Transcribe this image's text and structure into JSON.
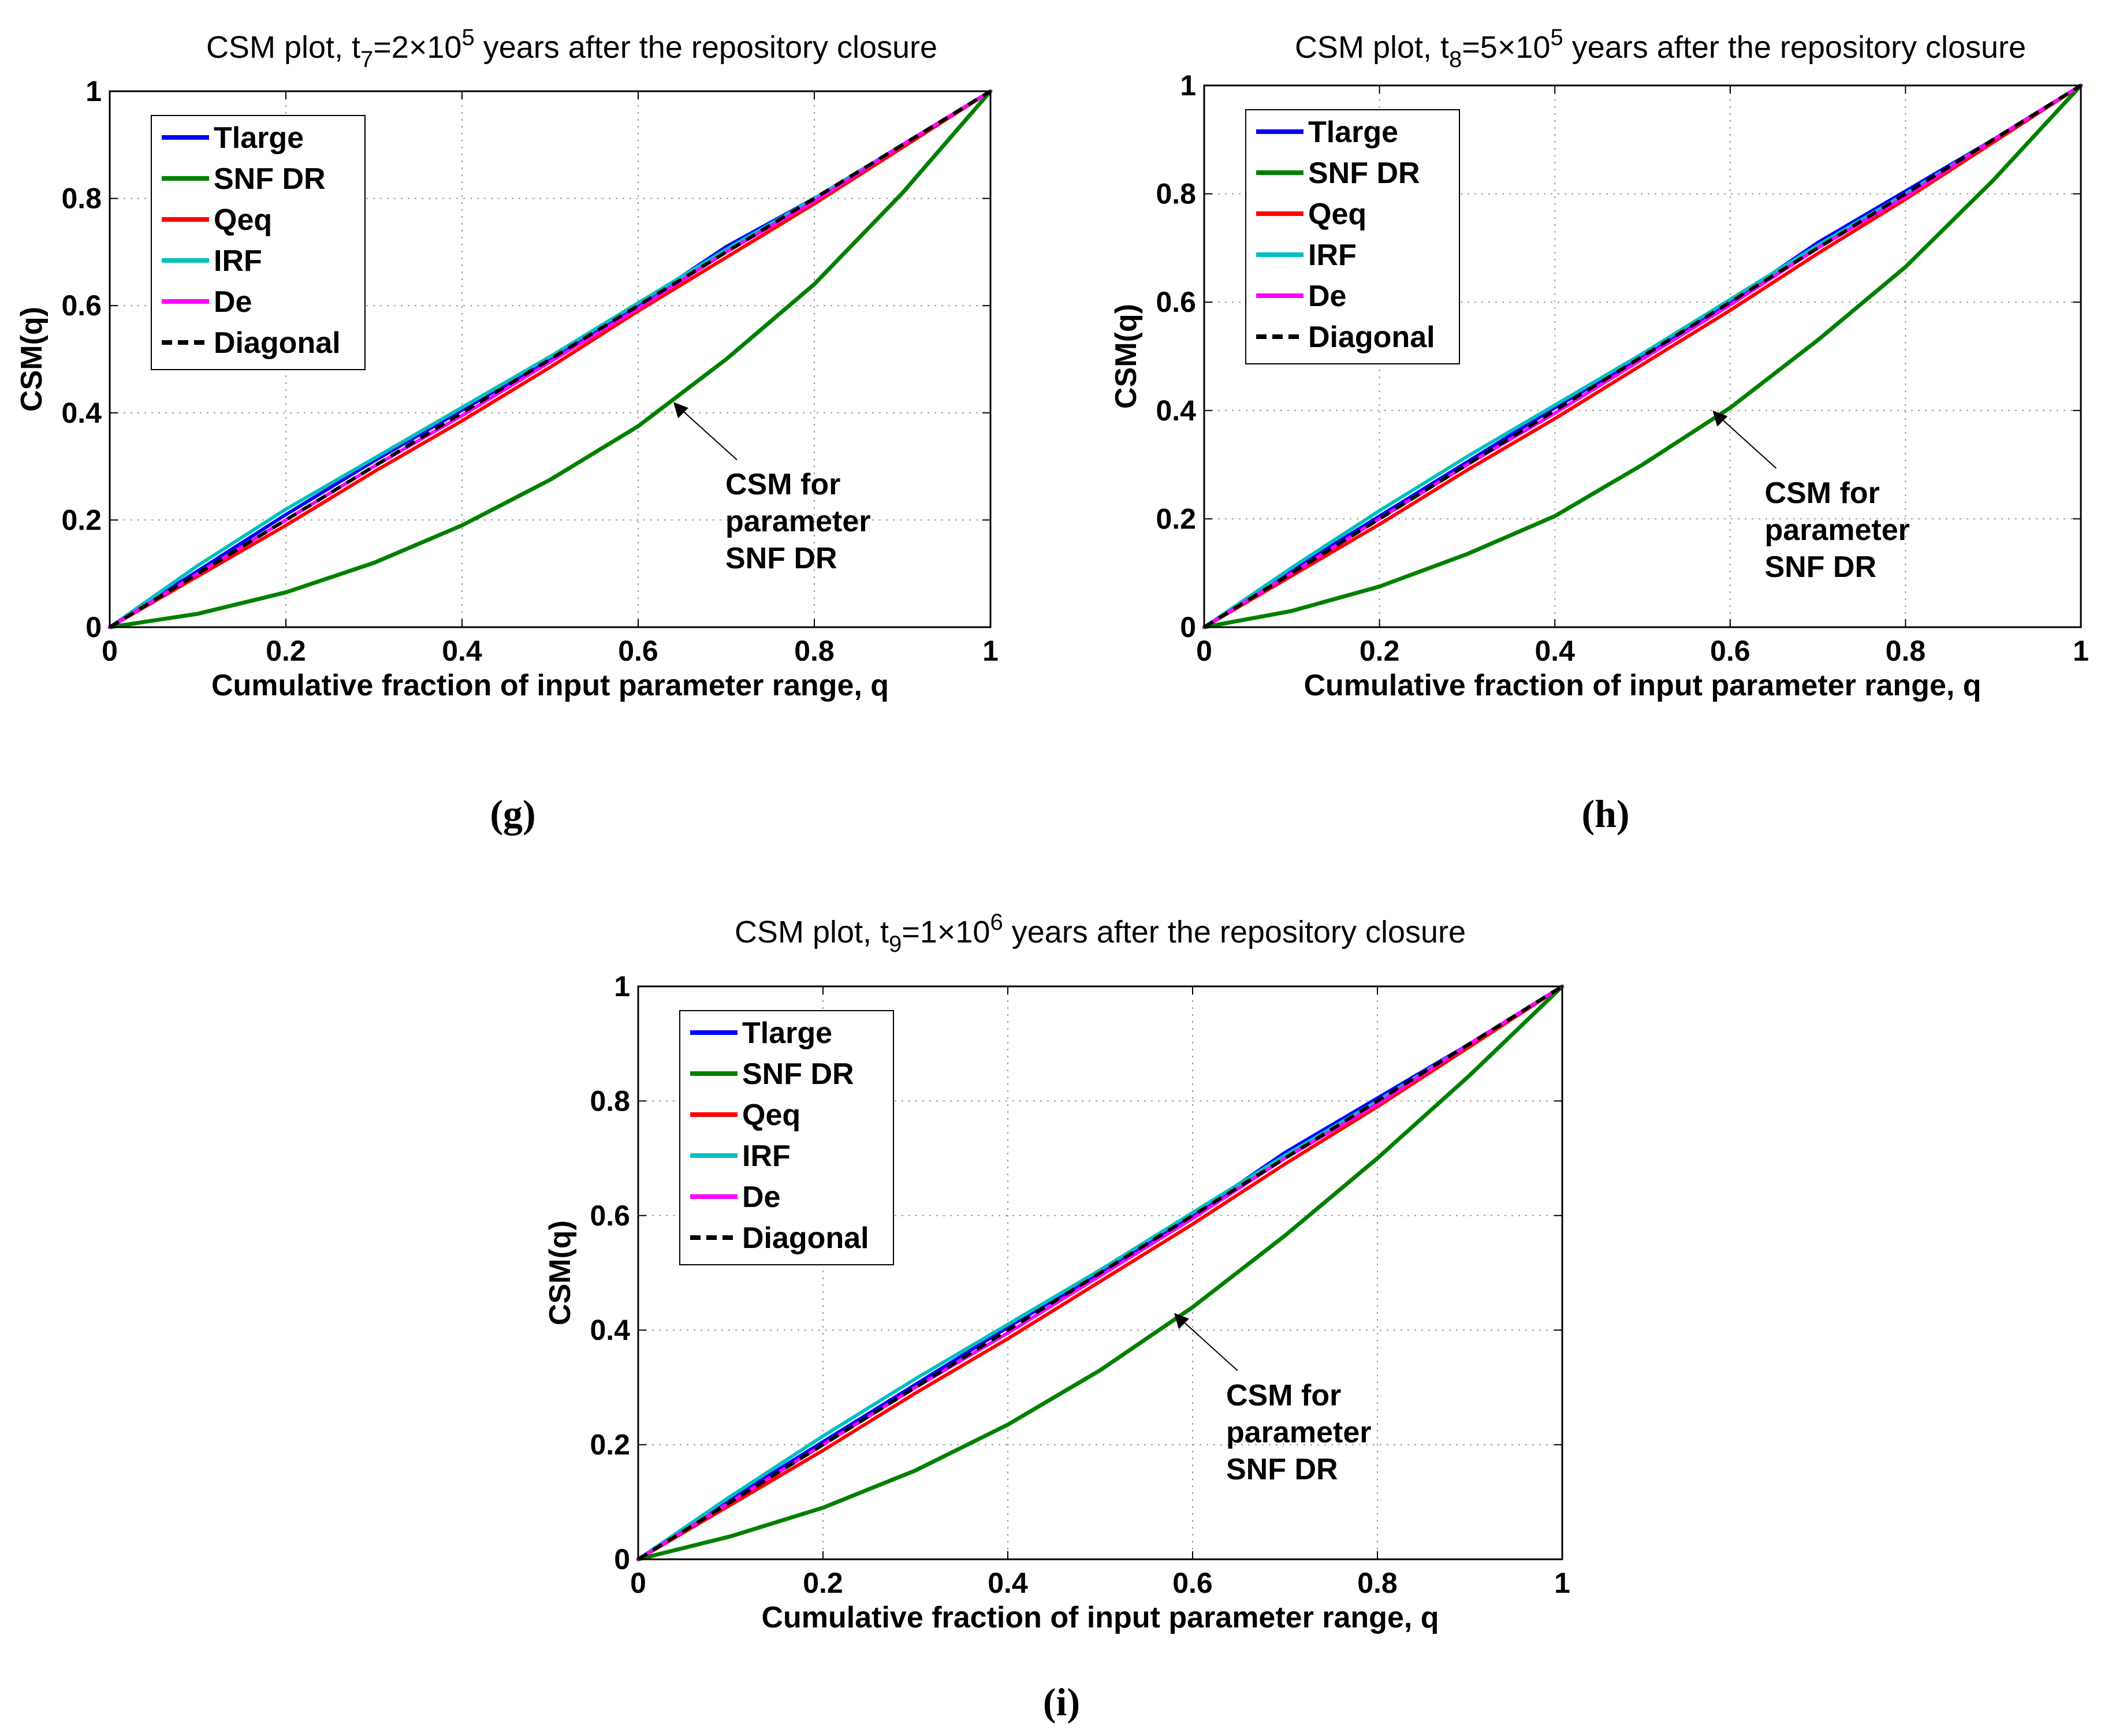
{
  "figure": {
    "panels_layout": "three panels: two in top row, one centered in bottom row"
  },
  "chart_data": [
    {
      "type": "line",
      "panel_label": "(g)",
      "title": {
        "prefix": "CSM plot, t",
        "sub": "7",
        "mid": "=2×10",
        "sup": "5",
        "suffix": " years after the repository closure"
      },
      "xlabel": "Cumulative fraction of input parameter range, q",
      "ylabel": "CSM(q)",
      "xlim": [
        0,
        1
      ],
      "ylim": [
        0,
        1
      ],
      "xticks": [
        "0",
        "0.2",
        "0.4",
        "0.6",
        "0.8",
        "1"
      ],
      "yticks": [
        "0",
        "0.2",
        "0.4",
        "0.6",
        "0.8",
        "1"
      ],
      "grid": true,
      "legend_position": "top-left",
      "series": [
        {
          "name": "Tlarge",
          "color": "#0000ff",
          "style": "solid",
          "x": [
            0,
            0.1,
            0.2,
            0.3,
            0.4,
            0.5,
            0.6,
            0.7,
            0.8,
            0.9,
            1
          ],
          "y": [
            0,
            0.105,
            0.21,
            0.31,
            0.405,
            0.5,
            0.6,
            0.71,
            0.8,
            0.9,
            1
          ]
        },
        {
          "name": "SNF DR",
          "color": "#008000",
          "style": "solid",
          "x": [
            0,
            0.1,
            0.2,
            0.3,
            0.4,
            0.5,
            0.6,
            0.7,
            0.8,
            0.9,
            1
          ],
          "y": [
            0,
            0.025,
            0.065,
            0.12,
            0.19,
            0.275,
            0.375,
            0.5,
            0.64,
            0.81,
            1
          ]
        },
        {
          "name": "Qeq",
          "color": "#ff0000",
          "style": "solid",
          "x": [
            0,
            0.1,
            0.2,
            0.3,
            0.4,
            0.5,
            0.6,
            0.7,
            0.8,
            0.9,
            1
          ],
          "y": [
            0,
            0.095,
            0.19,
            0.29,
            0.385,
            0.485,
            0.59,
            0.69,
            0.79,
            0.895,
            1
          ]
        },
        {
          "name": "IRF",
          "color": "#00bfbf",
          "style": "solid",
          "x": [
            0,
            0.1,
            0.2,
            0.3,
            0.4,
            0.5,
            0.6,
            0.7,
            0.8,
            0.9,
            1
          ],
          "y": [
            0,
            0.115,
            0.22,
            0.315,
            0.41,
            0.505,
            0.605,
            0.705,
            0.8,
            0.9,
            1
          ]
        },
        {
          "name": "De",
          "color": "#ff00ff",
          "style": "solid",
          "x": [
            0,
            0.1,
            0.2,
            0.3,
            0.4,
            0.5,
            0.6,
            0.7,
            0.8,
            0.9,
            1
          ],
          "y": [
            0,
            0.1,
            0.2,
            0.3,
            0.395,
            0.495,
            0.595,
            0.7,
            0.795,
            0.9,
            1
          ]
        },
        {
          "name": "Diagonal",
          "color": "#000000",
          "style": "dashed",
          "x": [
            0,
            1
          ],
          "y": [
            0,
            1
          ]
        }
      ],
      "annotation": {
        "lines": [
          "CSM for",
          "parameter",
          "SNF DR"
        ],
        "arrow_to": [
          0.64,
          0.42
        ]
      }
    },
    {
      "type": "line",
      "panel_label": "(h)",
      "title": {
        "prefix": "CSM plot, t",
        "sub": "8",
        "mid": "=5×10",
        "sup": "5",
        "suffix": " years after the repository closure"
      },
      "xlabel": "Cumulative fraction of input parameter range, q",
      "ylabel": "CSM(q)",
      "xlim": [
        0,
        1
      ],
      "ylim": [
        0,
        1
      ],
      "xticks": [
        "0",
        "0.2",
        "0.4",
        "0.6",
        "0.8",
        "1"
      ],
      "yticks": [
        "0",
        "0.2",
        "0.4",
        "0.6",
        "0.8",
        "1"
      ],
      "grid": true,
      "legend_position": "top-left",
      "series": [
        {
          "name": "Tlarge",
          "color": "#0000ff",
          "style": "solid",
          "x": [
            0,
            0.1,
            0.2,
            0.3,
            0.4,
            0.5,
            0.6,
            0.7,
            0.8,
            0.9,
            1
          ],
          "y": [
            0,
            0.105,
            0.205,
            0.305,
            0.405,
            0.5,
            0.6,
            0.71,
            0.805,
            0.9,
            1
          ]
        },
        {
          "name": "SNF DR",
          "color": "#008000",
          "style": "solid",
          "x": [
            0,
            0.1,
            0.2,
            0.3,
            0.4,
            0.5,
            0.6,
            0.7,
            0.8,
            0.9,
            1
          ],
          "y": [
            0,
            0.03,
            0.075,
            0.135,
            0.205,
            0.3,
            0.405,
            0.53,
            0.665,
            0.825,
            1
          ]
        },
        {
          "name": "Qeq",
          "color": "#ff0000",
          "style": "solid",
          "x": [
            0,
            0.1,
            0.2,
            0.3,
            0.4,
            0.5,
            0.6,
            0.7,
            0.8,
            0.9,
            1
          ],
          "y": [
            0,
            0.095,
            0.19,
            0.29,
            0.385,
            0.485,
            0.585,
            0.69,
            0.79,
            0.895,
            1
          ]
        },
        {
          "name": "IRF",
          "color": "#00bfbf",
          "style": "solid",
          "x": [
            0,
            0.1,
            0.2,
            0.3,
            0.4,
            0.5,
            0.6,
            0.7,
            0.8,
            0.9,
            1
          ],
          "y": [
            0,
            0.11,
            0.215,
            0.315,
            0.41,
            0.505,
            0.605,
            0.705,
            0.8,
            0.9,
            1
          ]
        },
        {
          "name": "De",
          "color": "#ff00ff",
          "style": "solid",
          "x": [
            0,
            0.1,
            0.2,
            0.3,
            0.4,
            0.5,
            0.6,
            0.7,
            0.8,
            0.9,
            1
          ],
          "y": [
            0,
            0.1,
            0.2,
            0.3,
            0.395,
            0.495,
            0.595,
            0.7,
            0.795,
            0.9,
            1
          ]
        },
        {
          "name": "Diagonal",
          "color": "#000000",
          "style": "dashed",
          "x": [
            0,
            1
          ],
          "y": [
            0,
            1
          ]
        }
      ],
      "annotation": {
        "lines": [
          "CSM for",
          "parameter",
          "SNF DR"
        ],
        "arrow_to": [
          0.58,
          0.4
        ]
      }
    },
    {
      "type": "line",
      "panel_label": "(i)",
      "title": {
        "prefix": "CSM plot, t",
        "sub": "9",
        "mid": "=1×10",
        "sup": "6",
        "suffix": " years after the repository closure"
      },
      "xlabel": "Cumulative fraction of input parameter range, q",
      "ylabel": "CSM(q)",
      "xlim": [
        0,
        1
      ],
      "ylim": [
        0,
        1
      ],
      "xticks": [
        "0",
        "0.2",
        "0.4",
        "0.6",
        "0.8",
        "1"
      ],
      "yticks": [
        "0",
        "0.2",
        "0.4",
        "0.6",
        "0.8",
        "1"
      ],
      "grid": true,
      "legend_position": "top-left",
      "series": [
        {
          "name": "Tlarge",
          "color": "#0000ff",
          "style": "solid",
          "x": [
            0,
            0.1,
            0.2,
            0.3,
            0.4,
            0.5,
            0.6,
            0.7,
            0.8,
            0.9,
            1
          ],
          "y": [
            0,
            0.105,
            0.205,
            0.305,
            0.405,
            0.5,
            0.6,
            0.71,
            0.805,
            0.9,
            1
          ]
        },
        {
          "name": "SNF DR",
          "color": "#008000",
          "style": "solid",
          "x": [
            0,
            0.1,
            0.2,
            0.3,
            0.4,
            0.5,
            0.6,
            0.7,
            0.8,
            0.9,
            1
          ],
          "y": [
            0,
            0.04,
            0.09,
            0.155,
            0.235,
            0.33,
            0.44,
            0.565,
            0.7,
            0.845,
            1
          ]
        },
        {
          "name": "Qeq",
          "color": "#ff0000",
          "style": "solid",
          "x": [
            0,
            0.1,
            0.2,
            0.3,
            0.4,
            0.5,
            0.6,
            0.7,
            0.8,
            0.9,
            1
          ],
          "y": [
            0,
            0.095,
            0.19,
            0.29,
            0.385,
            0.485,
            0.585,
            0.69,
            0.79,
            0.895,
            1
          ]
        },
        {
          "name": "IRF",
          "color": "#00bfbf",
          "style": "solid",
          "x": [
            0,
            0.1,
            0.2,
            0.3,
            0.4,
            0.5,
            0.6,
            0.7,
            0.8,
            0.9,
            1
          ],
          "y": [
            0,
            0.11,
            0.215,
            0.315,
            0.41,
            0.505,
            0.605,
            0.705,
            0.8,
            0.9,
            1
          ]
        },
        {
          "name": "De",
          "color": "#ff00ff",
          "style": "solid",
          "x": [
            0,
            0.1,
            0.2,
            0.3,
            0.4,
            0.5,
            0.6,
            0.7,
            0.8,
            0.9,
            1
          ],
          "y": [
            0,
            0.1,
            0.2,
            0.3,
            0.395,
            0.495,
            0.595,
            0.7,
            0.795,
            0.9,
            1
          ]
        },
        {
          "name": "Diagonal",
          "color": "#000000",
          "style": "dashed",
          "x": [
            0,
            1
          ],
          "y": [
            0,
            1
          ]
        }
      ],
      "annotation": {
        "lines": [
          "CSM for",
          "parameter",
          "SNF DR"
        ],
        "arrow_to": [
          0.58,
          0.43
        ]
      }
    }
  ]
}
